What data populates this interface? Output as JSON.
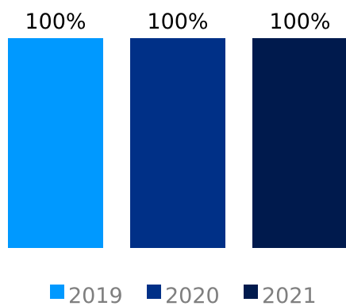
{
  "chart_data": {
    "type": "bar",
    "categories": [
      "2019",
      "2020",
      "2021"
    ],
    "values": [
      100,
      100,
      100
    ],
    "data_labels": [
      "100%",
      "100%",
      "100%"
    ],
    "colors": [
      "#0099ff",
      "#003087",
      "#001a4d"
    ],
    "ylim": [
      0,
      100
    ],
    "grid": false,
    "legend": {
      "placement": "bottom",
      "entries": [
        "2019",
        "2020",
        "2021"
      ]
    }
  }
}
